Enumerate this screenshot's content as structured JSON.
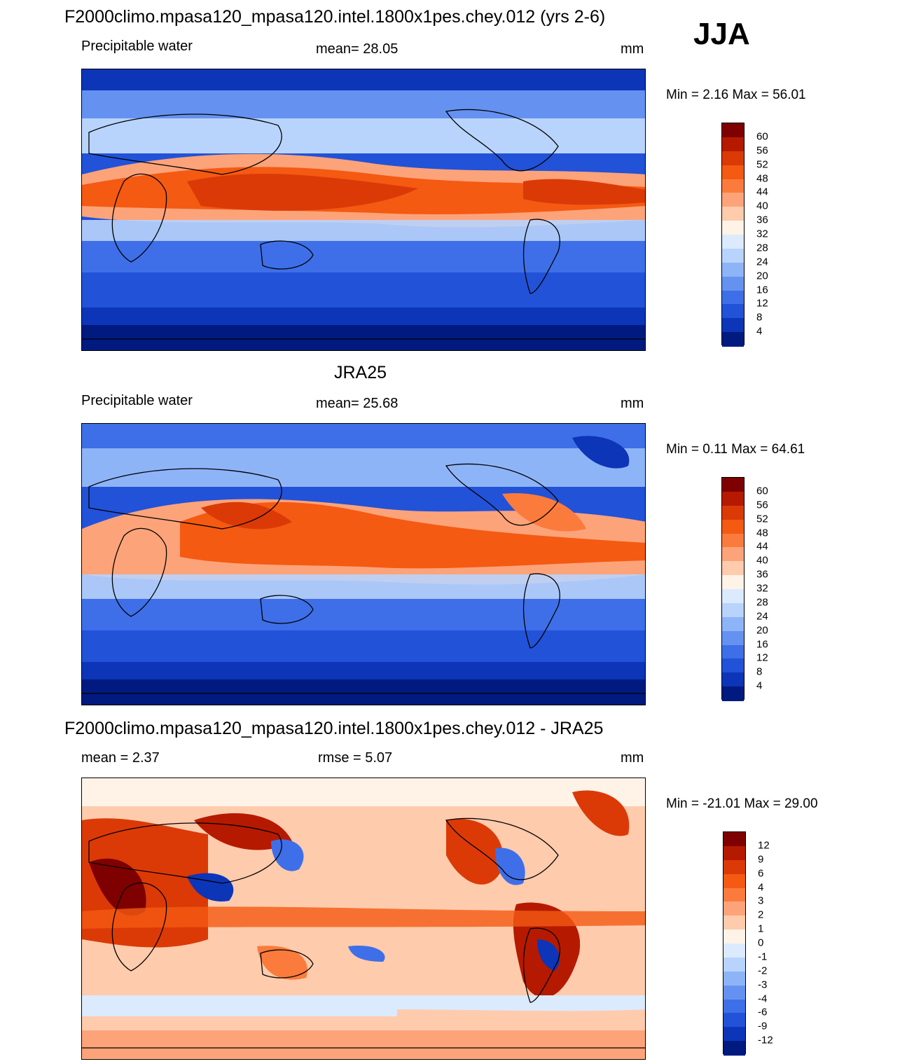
{
  "season": "JJA",
  "panels": [
    {
      "id": "model",
      "title": "F2000climo.mpasa120_mpasa120.intel.1800x1pes.chey.012 (yrs 2-6)",
      "left_label": "Precipitable water",
      "center_label": "mean=  28.05",
      "units": "mm",
      "min_max": "Min =   2.16 Max =  56.01",
      "colorbar": {
        "labels": [
          "60",
          "56",
          "52",
          "48",
          "44",
          "40",
          "36",
          "32",
          "28",
          "24",
          "20",
          "16",
          "12",
          "8",
          "4"
        ],
        "colors": [
          "#7f0000",
          "#b51a00",
          "#db3a07",
          "#f45a12",
          "#fb7b3c",
          "#fda37a",
          "#fecbad",
          "#fff3e8",
          "#dceafe",
          "#b9d4fc",
          "#8eb4f8",
          "#6592f1",
          "#3e6fe8",
          "#2252d8",
          "#0d35b8",
          "#001a80"
        ]
      }
    },
    {
      "id": "obs",
      "title": "JRA25",
      "left_label": "Precipitable water",
      "center_label": "mean=  25.68",
      "units": "mm",
      "min_max": "Min =   0.11 Max =  64.61",
      "colorbar": {
        "labels": [
          "60",
          "56",
          "52",
          "48",
          "44",
          "40",
          "36",
          "32",
          "28",
          "24",
          "20",
          "16",
          "12",
          "8",
          "4"
        ],
        "colors": [
          "#7f0000",
          "#b51a00",
          "#db3a07",
          "#f45a12",
          "#fb7b3c",
          "#fda37a",
          "#fecbad",
          "#fff3e8",
          "#dceafe",
          "#b9d4fc",
          "#8eb4f8",
          "#6592f1",
          "#3e6fe8",
          "#2252d8",
          "#0d35b8",
          "#001a80"
        ]
      }
    },
    {
      "id": "diff",
      "title": "F2000climo.mpasa120_mpasa120.intel.1800x1pes.chey.012 - JRA25",
      "left_label": "mean =   2.37",
      "center_label": "rmse =   5.07",
      "units": "mm",
      "min_max": "Min = -21.01 Max =  29.00",
      "colorbar": {
        "labels": [
          "12",
          "9",
          "6",
          "4",
          "3",
          "2",
          "1",
          "0",
          "-1",
          "-2",
          "-3",
          "-4",
          "-6",
          "-9",
          "-12"
        ],
        "colors": [
          "#7f0000",
          "#b51a00",
          "#db3a07",
          "#f45a12",
          "#fb7b3c",
          "#fda37a",
          "#fecbad",
          "#fff3e8",
          "#dceafe",
          "#b9d4fc",
          "#8eb4f8",
          "#6592f1",
          "#3e6fe8",
          "#2252d8",
          "#0d35b8",
          "#001a80"
        ]
      }
    }
  ]
}
